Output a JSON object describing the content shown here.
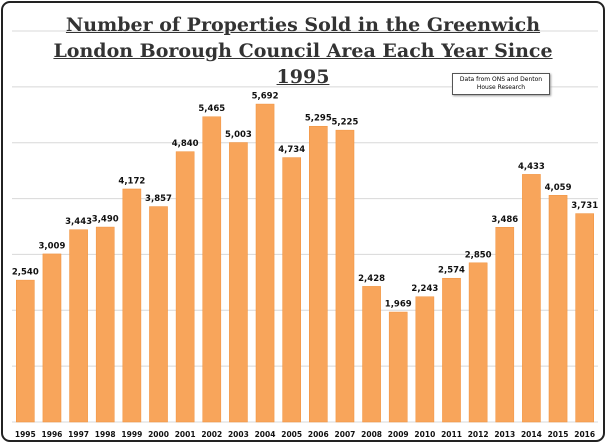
{
  "chart_data": {
    "type": "bar",
    "title": "Number of Properties Sold in the Greenwich London Borough Council Area Each Year Since 1995",
    "annotation": "Data from ONS and Denton House Research",
    "categories": [
      "1995",
      "1996",
      "1997",
      "1998",
      "1999",
      "2000",
      "2001",
      "2002",
      "2003",
      "2004",
      "2005",
      "2006",
      "2007",
      "2008",
      "2009",
      "2010",
      "2011",
      "2012",
      "2013",
      "2014",
      "2015",
      "2016"
    ],
    "values": [
      2540,
      3009,
      3443,
      3490,
      4172,
      3857,
      4840,
      5465,
      5003,
      5692,
      4734,
      5295,
      5225,
      2428,
      1969,
      2243,
      2574,
      2850,
      3486,
      4433,
      4059,
      3731
    ],
    "value_labels": [
      "2,540",
      "3,009",
      "3,443",
      "3,490",
      "4,172",
      "3,857",
      "4,840",
      "5,465",
      "5,003",
      "5,692",
      "4,734",
      "5,295",
      "5,225",
      "2,428",
      "1,969",
      "2,243",
      "2,574",
      "2,850",
      "3,486",
      "4,433",
      "4,059",
      "3,731"
    ],
    "color": "#f8a55b",
    "ylim": [
      0,
      7000
    ],
    "yticks": [
      0,
      1000,
      2000,
      3000,
      4000,
      5000,
      6000,
      7000
    ],
    "grid": true
  }
}
